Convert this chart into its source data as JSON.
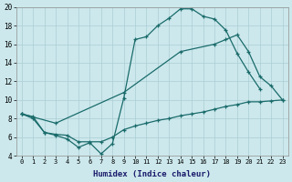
{
  "xlabel": "Humidex (Indice chaleur)",
  "bg_color": "#cce8ec",
  "grid_color": "#aacdd4",
  "line_color": "#1a6b6b",
  "x_min": -0.5,
  "x_max": 23.5,
  "y_min": 4,
  "y_max": 20,
  "series": [
    {
      "x": [
        0,
        1,
        2,
        3,
        4,
        5,
        6,
        7,
        8,
        9,
        10,
        11,
        12,
        13,
        14,
        15,
        16,
        17,
        18,
        19,
        20,
        21
      ],
      "y": [
        8.5,
        8.2,
        6.5,
        6.2,
        5.8,
        4.9,
        5.4,
        4.2,
        5.3,
        10.2,
        16.5,
        16.8,
        18.0,
        18.8,
        19.8,
        19.8,
        19.0,
        18.7,
        17.5,
        15.0,
        13.0,
        11.2
      ]
    },
    {
      "x": [
        0,
        3,
        9,
        14,
        17,
        18,
        19,
        20,
        21,
        22,
        23
      ],
      "y": [
        8.5,
        7.5,
        10.8,
        15.2,
        16.0,
        16.5,
        17.0,
        15.2,
        12.5,
        11.5,
        10.0
      ]
    },
    {
      "x": [
        0,
        1,
        2,
        3,
        4,
        5,
        6,
        7,
        8,
        9,
        10,
        11,
        12,
        13,
        14,
        15,
        16,
        17,
        18,
        19,
        20,
        21,
        22,
        23
      ],
      "y": [
        8.5,
        8.0,
        6.5,
        6.3,
        6.2,
        5.5,
        5.5,
        5.5,
        6.0,
        6.8,
        7.2,
        7.5,
        7.8,
        8.0,
        8.3,
        8.5,
        8.7,
        9.0,
        9.3,
        9.5,
        9.8,
        9.8,
        9.9,
        10.0
      ]
    }
  ],
  "yticks": [
    4,
    6,
    8,
    10,
    12,
    14,
    16,
    18,
    20
  ],
  "xticks": [
    0,
    1,
    2,
    3,
    4,
    5,
    6,
    7,
    8,
    9,
    10,
    11,
    12,
    13,
    14,
    15,
    16,
    17,
    18,
    19,
    20,
    21,
    22,
    23
  ]
}
